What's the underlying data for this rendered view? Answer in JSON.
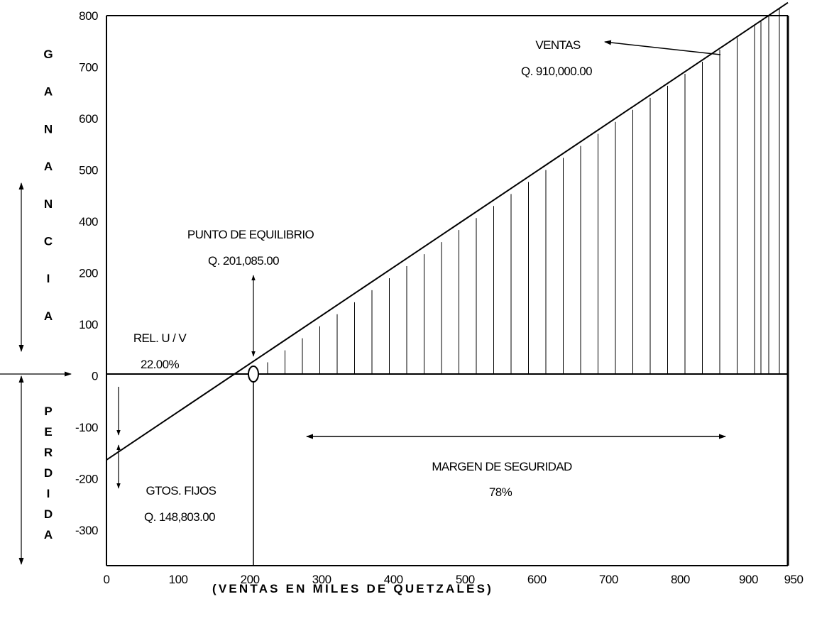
{
  "chart_data": {
    "type": "line",
    "xlabel": "(VENTAS EN MILES DE QUETZALES)",
    "x_ticks": [
      "0",
      "100",
      "200",
      "300",
      "400",
      "500",
      "600",
      "700",
      "800",
      "900",
      "950"
    ],
    "y_ticks": [
      "800",
      "700",
      "600",
      "500",
      "400",
      "200",
      "100",
      "0",
      "-100",
      "-200",
      "-300"
    ],
    "xlim": [
      0,
      950
    ],
    "series": [
      {
        "x": [
          0,
          201.085,
          950
        ],
        "y": [
          -170,
          0,
          735
        ]
      }
    ],
    "hatched_region": "profit area between break-even and sales (x 201–950)",
    "break_even_x": 201.085,
    "sales_x": 910,
    "left_side_labels": {
      "top": "GANANCIA",
      "bottom": "PERDIDA"
    },
    "annotations": {
      "ventas_title": "VENTAS",
      "ventas_value": "Q. 910,000.00",
      "pe_title": "PUNTO DE EQUILIBRIO",
      "pe_value": "Q. 201,085.00",
      "rel_title": "REL. U / V",
      "rel_value": "22.00%",
      "gf_title": "GTOS. FIJOS",
      "gf_value": "Q. 148,803.00",
      "ms_title": "MARGEN DE SEGURIDAD",
      "ms_value": "78%"
    }
  }
}
